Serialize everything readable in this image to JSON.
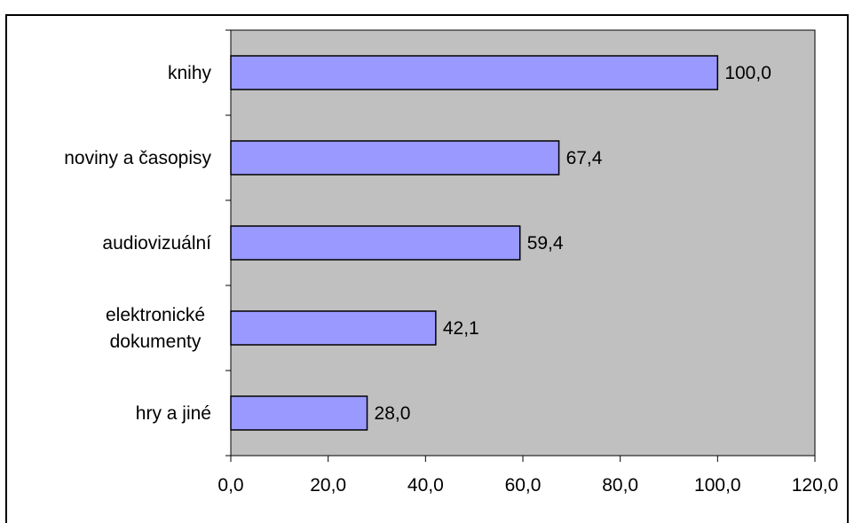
{
  "chart_data": {
    "type": "bar",
    "orientation": "horizontal",
    "categories": [
      [
        "knihy"
      ],
      [
        "noviny a časopisy"
      ],
      [
        "audiovizuální"
      ],
      [
        "elektronické",
        "dokumenty"
      ],
      [
        "hry a jiné"
      ]
    ],
    "values": [
      100.0,
      67.4,
      59.4,
      42.1,
      28.0
    ],
    "value_labels": [
      "100,0",
      "67,4",
      "59,4",
      "42,1",
      "28,0"
    ],
    "xlim": [
      0,
      120
    ],
    "x_ticks": [
      "0,0",
      "20,0",
      "40,0",
      "60,0",
      "80,0",
      "100,0",
      "120,0"
    ],
    "title": "",
    "xlabel": "",
    "ylabel": "",
    "grid": false,
    "legend": "none",
    "colors": {
      "bar_fill": "#9999ff",
      "bar_stroke": "#000000",
      "plot_background": "#c0c0c0",
      "page_background": "#ffffff"
    }
  }
}
